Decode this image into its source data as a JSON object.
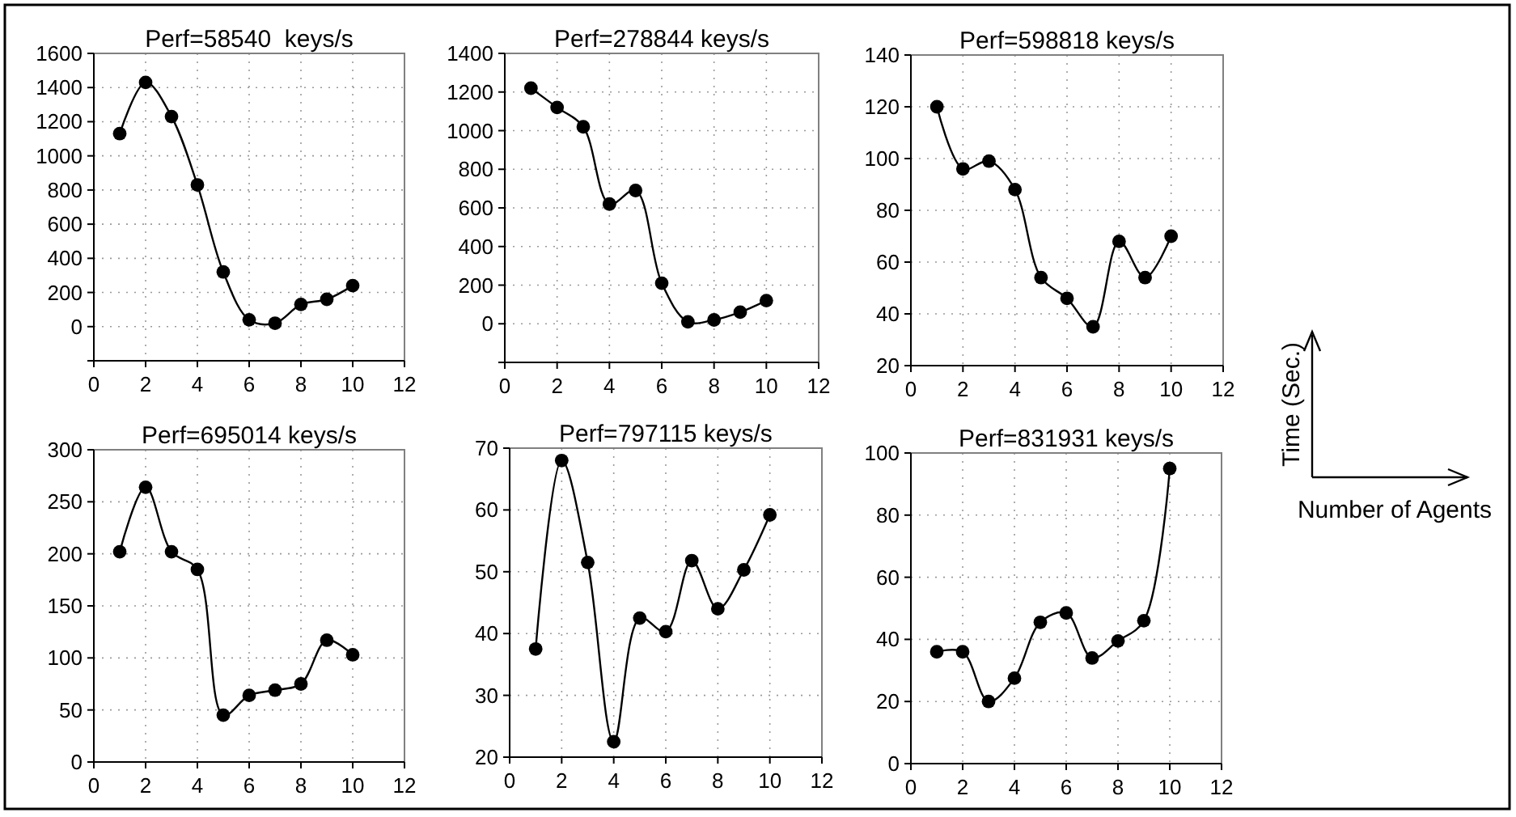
{
  "chart_data": [
    {
      "type": "line",
      "title": "Perf=58540  keys/s",
      "x": [
        1,
        2,
        3,
        4,
        5,
        6,
        7,
        8,
        9,
        10
      ],
      "values": [
        1130,
        1430,
        1230,
        830,
        320,
        40,
        20,
        130,
        160,
        240
      ],
      "color": "#000000",
      "xlim": [
        0,
        12
      ],
      "xticks": [
        0,
        2,
        4,
        6,
        8,
        10,
        12
      ],
      "ylim": [
        -200,
        1600
      ],
      "yticks": [
        {
          "value": -200,
          "label": null
        },
        0,
        200,
        400,
        600,
        800,
        1000,
        1200,
        1400,
        1600
      ],
      "grid": true,
      "marker": "circle"
    },
    {
      "type": "line",
      "title": "Perf=278844 keys/s",
      "x": [
        1,
        2,
        3,
        4,
        5,
        6,
        7,
        8,
        9,
        10
      ],
      "values": [
        1220,
        1120,
        1020,
        620,
        690,
        210,
        10,
        20,
        60,
        120
      ],
      "color": "#000000",
      "xlim": [
        0,
        12
      ],
      "xticks": [
        0,
        2,
        4,
        6,
        8,
        10,
        12
      ],
      "ylim": [
        -200,
        1400
      ],
      "yticks": [
        {
          "value": -200,
          "label": null
        },
        0,
        200,
        400,
        600,
        800,
        1000,
        1200,
        1400
      ],
      "grid": true,
      "marker": "circle"
    },
    {
      "type": "line",
      "title": "Perf=598818 keys/s",
      "x": [
        1,
        2,
        3,
        4,
        5,
        6,
        7,
        8,
        9,
        10
      ],
      "values": [
        120,
        96,
        99,
        88,
        54,
        46,
        35,
        68,
        54,
        70
      ],
      "color": "#000000",
      "xlim": [
        0,
        12
      ],
      "xticks": [
        0,
        2,
        4,
        6,
        8,
        10,
        12
      ],
      "ylim": [
        20,
        140
      ],
      "yticks": [
        20,
        40,
        60,
        80,
        100,
        120,
        140
      ],
      "grid": true,
      "marker": "circle"
    },
    {
      "type": "line",
      "title": "Perf=695014 keys/s",
      "x": [
        1,
        2,
        3,
        4,
        5,
        6,
        7,
        8,
        9,
        10
      ],
      "values": [
        202,
        264,
        202,
        185,
        45,
        64,
        69,
        75,
        117,
        103
      ],
      "color": "#000000",
      "xlim": [
        0,
        12
      ],
      "xticks": [
        0,
        2,
        4,
        6,
        8,
        10,
        12
      ],
      "ylim": [
        0,
        300
      ],
      "yticks": [
        0,
        50,
        100,
        150,
        200,
        250,
        300
      ],
      "grid": true,
      "marker": "circle"
    },
    {
      "type": "line",
      "title": "Perf=797115 keys/s",
      "x": [
        1,
        2,
        3,
        4,
        5,
        6,
        7,
        8,
        9,
        10
      ],
      "values": [
        37.5,
        68,
        51.5,
        22.5,
        42.5,
        40.3,
        51.8,
        44,
        50.3,
        59.2
      ],
      "color": "#000000",
      "xlim": [
        0,
        12
      ],
      "xticks": [
        0,
        2,
        4,
        6,
        8,
        10,
        12
      ],
      "ylim": [
        20,
        70
      ],
      "yticks": [
        20,
        30,
        40,
        50,
        60,
        70
      ],
      "grid": true,
      "marker": "circle"
    },
    {
      "type": "line",
      "title": "Perf=831931 keys/s",
      "x": [
        1,
        2,
        3,
        4,
        5,
        6,
        7,
        8,
        9,
        10
      ],
      "values": [
        36,
        36,
        20,
        27.5,
        45.5,
        48.5,
        34,
        39.5,
        46,
        95
      ],
      "color": "#000000",
      "xlim": [
        0,
        12
      ],
      "xticks": [
        0,
        2,
        4,
        6,
        8,
        10,
        12
      ],
      "ylim": [
        0,
        100
      ],
      "yticks": [
        0,
        20,
        40,
        60,
        80,
        100
      ],
      "grid": true,
      "marker": "circle"
    },
    {
      "type": "other",
      "xlabel": "Number of Agents",
      "ylabel": "Time (Sec.)"
    }
  ]
}
